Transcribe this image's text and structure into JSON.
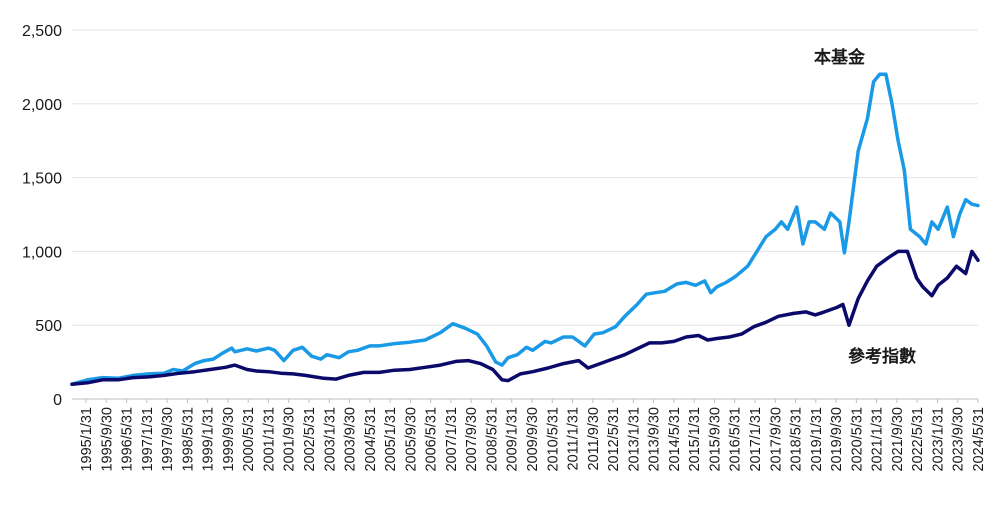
{
  "chart_data": {
    "type": "line",
    "title": "",
    "xlabel": "",
    "ylabel": "",
    "ylim": [
      0,
      2500
    ],
    "y_ticks": [
      "0",
      "500",
      "1,000",
      "1,500",
      "2,000",
      "2,500"
    ],
    "x_ticks": [
      "1995/1/31",
      "1995/9/30",
      "1996/5/31",
      "1997/1/31",
      "1997/9/30",
      "1998/5/31",
      "1999/1/31",
      "1999/9/30",
      "2000/5/31",
      "2001/1/31",
      "2001/9/30",
      "2002/5/31",
      "2003/1/31",
      "2003/9/30",
      "2004/5/31",
      "2005/1/31",
      "2005/9/30",
      "2006/5/31",
      "2007/1/31",
      "2007/9/30",
      "2008/5/31",
      "2009/1/31",
      "2009/9/30",
      "2010/5/31",
      "2011/1/31",
      "2011/9/30",
      "2012/5/31",
      "2013/1/31",
      "2013/9/30",
      "2014/5/31",
      "2015/1/31",
      "2015/9/30",
      "2016/5/31",
      "2017/1/31",
      "2017/9/30",
      "2018/5/31",
      "2019/1/31",
      "2019/9/30",
      "2020/5/31",
      "2021/1/31",
      "2021/9/30",
      "2022/5/31",
      "2023/1/31",
      "2023/9/30",
      "2024/5/31"
    ],
    "grid": true,
    "series": [
      {
        "name": "本基金",
        "color": "#1a9ae6",
        "x": [
          1995.0,
          1995.5,
          1996.0,
          1996.5,
          1997.0,
          1997.5,
          1998.0,
          1998.3,
          1998.6,
          1999.0,
          1999.3,
          1999.6,
          1999.9,
          2000.2,
          2000.3,
          2000.7,
          2001.0,
          2001.4,
          2001.6,
          2001.9,
          2002.2,
          2002.5,
          2002.8,
          2003.1,
          2003.3,
          2003.7,
          2004.0,
          2004.3,
          2004.7,
          2005.0,
          2005.5,
          2006.0,
          2006.5,
          2007.0,
          2007.4,
          2007.8,
          2008.2,
          2008.5,
          2008.8,
          2009.0,
          2009.2,
          2009.5,
          2009.8,
          2010.0,
          2010.4,
          2010.6,
          2011.0,
          2011.3,
          2011.7,
          2012.0,
          2012.3,
          2012.7,
          2013.0,
          2013.4,
          2013.7,
          2014.0,
          2014.3,
          2014.7,
          2015.0,
          2015.3,
          2015.6,
          2015.8,
          2016.0,
          2016.3,
          2016.6,
          2017.0,
          2017.3,
          2017.6,
          2017.9,
          2018.1,
          2018.3,
          2018.6,
          2018.8,
          2019.0,
          2019.2,
          2019.5,
          2019.7,
          2020.0,
          2020.15,
          2020.3,
          2020.6,
          2020.9,
          2021.1,
          2021.3,
          2021.5,
          2021.7,
          2021.9,
          2022.1,
          2022.3,
          2022.6,
          2022.8,
          2023.0,
          2023.2,
          2023.5,
          2023.7,
          2023.9,
          2024.1,
          2024.3,
          2024.5
        ],
        "y": [
          100,
          130,
          145,
          140,
          160,
          170,
          175,
          200,
          190,
          240,
          260,
          270,
          310,
          345,
          320,
          340,
          325,
          345,
          330,
          260,
          330,
          350,
          290,
          270,
          300,
          280,
          320,
          330,
          360,
          360,
          375,
          385,
          400,
          450,
          510,
          480,
          440,
          360,
          250,
          230,
          280,
          300,
          350,
          330,
          390,
          380,
          420,
          420,
          360,
          440,
          450,
          490,
          560,
          640,
          710,
          720,
          730,
          780,
          790,
          770,
          800,
          720,
          760,
          790,
          830,
          900,
          1000,
          1100,
          1150,
          1200,
          1150,
          1300,
          1050,
          1200,
          1200,
          1150,
          1260,
          1200,
          990,
          1200,
          1680,
          1900,
          2150,
          2200,
          2200,
          2000,
          1750,
          1550,
          1150,
          1100,
          1050,
          1200,
          1150,
          1300,
          1100,
          1250,
          1350,
          1320,
          1310
        ]
      },
      {
        "name": "參考指數",
        "color": "#0b0a6b",
        "x": [
          1995.0,
          1995.5,
          1996.0,
          1996.5,
          1997.0,
          1997.5,
          1998.0,
          1998.5,
          1999.0,
          1999.5,
          2000.0,
          2000.3,
          2000.7,
          2001.0,
          2001.4,
          2001.8,
          2002.2,
          2002.6,
          2002.9,
          2003.2,
          2003.6,
          2004.0,
          2004.5,
          2005.0,
          2005.5,
          2006.0,
          2006.5,
          2007.0,
          2007.5,
          2007.9,
          2008.3,
          2008.7,
          2009.0,
          2009.2,
          2009.6,
          2010.0,
          2010.5,
          2011.0,
          2011.5,
          2011.8,
          2012.2,
          2012.6,
          2013.0,
          2013.4,
          2013.8,
          2014.2,
          2014.6,
          2015.0,
          2015.4,
          2015.7,
          2016.0,
          2016.4,
          2016.8,
          2017.2,
          2017.6,
          2018.0,
          2018.5,
          2018.9,
          2019.2,
          2019.5,
          2019.9,
          2020.1,
          2020.3,
          2020.6,
          2020.9,
          2021.2,
          2021.6,
          2021.9,
          2022.2,
          2022.5,
          2022.7,
          2023.0,
          2023.2,
          2023.5,
          2023.8,
          2024.1,
          2024.3,
          2024.5
        ],
        "y": [
          100,
          110,
          130,
          130,
          145,
          150,
          160,
          175,
          185,
          200,
          215,
          230,
          200,
          190,
          185,
          175,
          170,
          160,
          150,
          140,
          135,
          160,
          180,
          180,
          195,
          200,
          215,
          230,
          255,
          260,
          240,
          200,
          130,
          125,
          170,
          185,
          210,
          240,
          260,
          210,
          240,
          270,
          300,
          340,
          380,
          380,
          390,
          420,
          430,
          400,
          410,
          420,
          440,
          490,
          520,
          560,
          580,
          590,
          570,
          590,
          620,
          640,
          500,
          680,
          800,
          900,
          960,
          1000,
          1000,
          820,
          760,
          700,
          770,
          820,
          900,
          850,
          1000,
          940
        ]
      }
    ],
    "annotations": [
      {
        "text": "本基金",
        "series": "本基金"
      },
      {
        "text": "參考指數",
        "series": "參考指數"
      }
    ]
  }
}
